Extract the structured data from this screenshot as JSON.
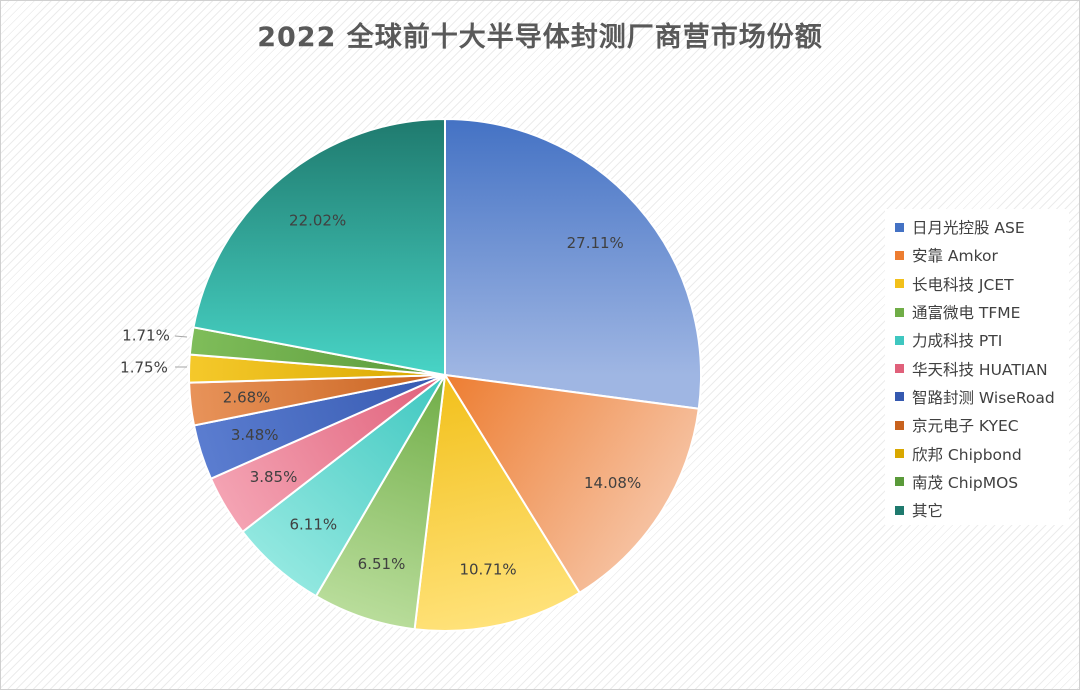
{
  "chart_data": {
    "type": "pie",
    "title": "2022 全球前十大半导体封测厂商营市场份额",
    "categories": [
      "日月光控股 ASE",
      "安靠 Amkor",
      "长电科技 JCET",
      "通富微电 TFME",
      "力成科技 PTI",
      "华天科技 HUATIAN",
      "智路封测 WiseRoad",
      "京元电子 KYEC",
      "欣邦 Chipbond",
      "南茂 ChipMOS",
      "其它"
    ],
    "values": [
      27.11,
      14.08,
      10.71,
      6.51,
      6.11,
      3.85,
      3.48,
      2.68,
      1.75,
      1.71,
      22.02
    ],
    "value_labels": [
      "27.11%",
      "14.08%",
      "10.71%",
      "6.51%",
      "6.11%",
      "3.85%",
      "3.48%",
      "2.68%",
      "1.75%",
      "1.71%",
      "22.02%"
    ],
    "colors": [
      [
        "#4472c4",
        "#9fb6e3"
      ],
      [
        "#ed7d31",
        "#f6c1a0"
      ],
      [
        "#f2c01a",
        "#ffe27a"
      ],
      [
        "#70ad47",
        "#b9dd9b"
      ],
      [
        "#3fc7c0",
        "#92e8e0"
      ],
      [
        "#e0607a",
        "#f4a3b3"
      ],
      [
        "#3559b0",
        "#5b7dd0"
      ],
      [
        "#c8621e",
        "#e8935a"
      ],
      [
        "#d9a800",
        "#f5c92b"
      ],
      [
        "#5a9a3a",
        "#7fbd5a"
      ],
      [
        "#1f7a6e",
        "#48d4c6"
      ]
    ],
    "legend_position": "right",
    "start_angle_deg": 0,
    "direction": "clockwise"
  }
}
